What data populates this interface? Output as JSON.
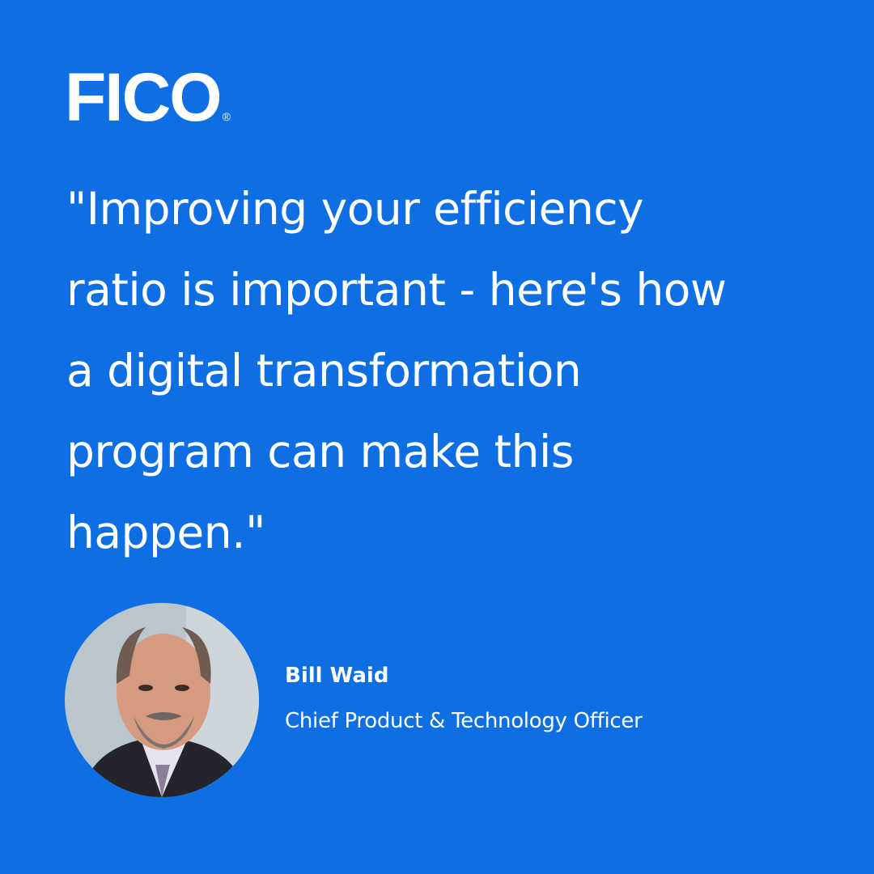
{
  "brand": {
    "logo_text": "FICO",
    "registered": "®",
    "background_color": "#0e6fe5",
    "text_color": "#ffffff"
  },
  "quote": {
    "lines": [
      "\"Improving your efficiency",
      "ratio is important - here's how",
      "a digital transformation",
      "program can make this",
      "happen.\""
    ]
  },
  "author": {
    "name": "Bill Waid",
    "title": "Chief Product & Technology Officer",
    "photo": "author-portrait"
  }
}
